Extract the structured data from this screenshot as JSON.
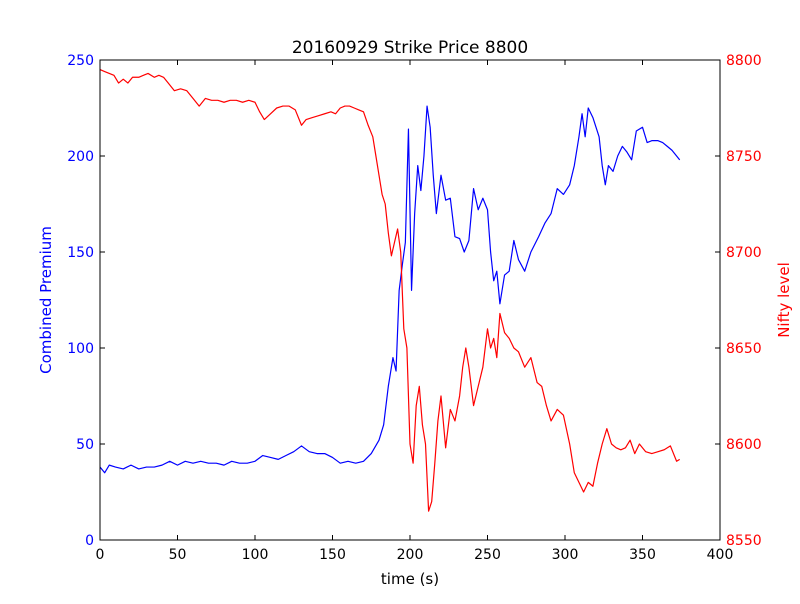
{
  "chart_data": {
    "type": "line",
    "title": "20160929 Strike Price 8800",
    "xlabel": "time (s)",
    "xlim": [
      0,
      400
    ],
    "x_ticks": [
      0,
      50,
      100,
      150,
      200,
      250,
      300,
      350,
      400
    ],
    "axes": {
      "left": {
        "label": "Combined Premium",
        "color": "#0000ff",
        "ylim": [
          0,
          250
        ],
        "ticks": [
          0,
          50,
          100,
          150,
          200,
          250
        ]
      },
      "right": {
        "label": "Nifty level",
        "color": "#ff0000",
        "ylim": [
          8550,
          8800
        ],
        "ticks": [
          8550,
          8600,
          8650,
          8700,
          8750,
          8800
        ]
      }
    },
    "grid": false,
    "legend": "none",
    "series": [
      {
        "axis": "left",
        "color": "#0000ff",
        "points": [
          [
            0,
            38
          ],
          [
            3,
            35
          ],
          [
            6,
            39
          ],
          [
            10,
            38
          ],
          [
            15,
            37
          ],
          [
            20,
            39
          ],
          [
            25,
            37
          ],
          [
            30,
            38
          ],
          [
            35,
            38
          ],
          [
            40,
            39
          ],
          [
            45,
            41
          ],
          [
            50,
            39
          ],
          [
            55,
            41
          ],
          [
            60,
            40
          ],
          [
            65,
            41
          ],
          [
            70,
            40
          ],
          [
            75,
            40
          ],
          [
            80,
            39
          ],
          [
            85,
            41
          ],
          [
            90,
            40
          ],
          [
            95,
            40
          ],
          [
            100,
            41
          ],
          [
            105,
            44
          ],
          [
            110,
            43
          ],
          [
            115,
            42
          ],
          [
            120,
            44
          ],
          [
            125,
            46
          ],
          [
            130,
            49
          ],
          [
            135,
            46
          ],
          [
            140,
            45
          ],
          [
            145,
            45
          ],
          [
            150,
            43
          ],
          [
            155,
            40
          ],
          [
            160,
            41
          ],
          [
            165,
            40
          ],
          [
            170,
            41
          ],
          [
            175,
            45
          ],
          [
            180,
            52
          ],
          [
            183,
            60
          ],
          [
            186,
            80
          ],
          [
            189,
            95
          ],
          [
            191,
            88
          ],
          [
            193,
            130
          ],
          [
            195,
            143
          ],
          [
            197,
            155
          ],
          [
            199,
            214
          ],
          [
            201,
            130
          ],
          [
            203,
            170
          ],
          [
            205,
            195
          ],
          [
            207,
            182
          ],
          [
            209,
            200
          ],
          [
            211,
            226
          ],
          [
            213,
            215
          ],
          [
            215,
            190
          ],
          [
            217,
            170
          ],
          [
            220,
            190
          ],
          [
            223,
            177
          ],
          [
            226,
            178
          ],
          [
            229,
            158
          ],
          [
            232,
            157
          ],
          [
            235,
            150
          ],
          [
            238,
            156
          ],
          [
            241,
            183
          ],
          [
            244,
            172
          ],
          [
            247,
            178
          ],
          [
            250,
            172
          ],
          [
            252,
            150
          ],
          [
            254,
            135
          ],
          [
            256,
            140
          ],
          [
            258,
            123
          ],
          [
            261,
            138
          ],
          [
            264,
            140
          ],
          [
            267,
            156
          ],
          [
            270,
            146
          ],
          [
            274,
            140
          ],
          [
            278,
            150
          ],
          [
            283,
            158
          ],
          [
            287,
            165
          ],
          [
            291,
            170
          ],
          [
            295,
            183
          ],
          [
            299,
            180
          ],
          [
            303,
            185
          ],
          [
            306,
            195
          ],
          [
            309,
            210
          ],
          [
            311,
            222
          ],
          [
            313,
            210
          ],
          [
            315,
            225
          ],
          [
            318,
            220
          ],
          [
            320,
            215
          ],
          [
            322,
            210
          ],
          [
            324,
            195
          ],
          [
            326,
            185
          ],
          [
            328,
            195
          ],
          [
            331,
            192
          ],
          [
            334,
            200
          ],
          [
            337,
            205
          ],
          [
            340,
            202
          ],
          [
            343,
            198
          ],
          [
            346,
            213
          ],
          [
            350,
            215
          ],
          [
            353,
            207
          ],
          [
            356,
            208
          ],
          [
            360,
            208
          ],
          [
            363,
            207
          ],
          [
            366,
            205
          ],
          [
            369,
            203
          ],
          [
            372,
            200
          ],
          [
            374,
            198
          ]
        ]
      },
      {
        "axis": "right",
        "color": "#ff0000",
        "points": [
          [
            0,
            8795
          ],
          [
            3,
            8794
          ],
          [
            6,
            8793
          ],
          [
            9,
            8792
          ],
          [
            12,
            8788
          ],
          [
            15,
            8790
          ],
          [
            18,
            8788
          ],
          [
            21,
            8791
          ],
          [
            25,
            8791
          ],
          [
            28,
            8792
          ],
          [
            31,
            8793
          ],
          [
            35,
            8791
          ],
          [
            38,
            8792
          ],
          [
            41,
            8791
          ],
          [
            44,
            8788
          ],
          [
            48,
            8784
          ],
          [
            52,
            8785
          ],
          [
            56,
            8784
          ],
          [
            60,
            8780
          ],
          [
            64,
            8776
          ],
          [
            68,
            8780
          ],
          [
            72,
            8779
          ],
          [
            76,
            8779
          ],
          [
            80,
            8778
          ],
          [
            84,
            8779
          ],
          [
            88,
            8779
          ],
          [
            92,
            8778
          ],
          [
            96,
            8779
          ],
          [
            100,
            8778
          ],
          [
            103,
            8773
          ],
          [
            106,
            8769
          ],
          [
            110,
            8772
          ],
          [
            114,
            8775
          ],
          [
            118,
            8776
          ],
          [
            122,
            8776
          ],
          [
            126,
            8774
          ],
          [
            130,
            8766
          ],
          [
            133,
            8769
          ],
          [
            137,
            8770
          ],
          [
            141,
            8771
          ],
          [
            145,
            8772
          ],
          [
            149,
            8773
          ],
          [
            152,
            8772
          ],
          [
            155,
            8775
          ],
          [
            158,
            8776
          ],
          [
            161,
            8776
          ],
          [
            164,
            8775
          ],
          [
            167,
            8774
          ],
          [
            170,
            8773
          ],
          [
            173,
            8766
          ],
          [
            176,
            8760
          ],
          [
            178,
            8750
          ],
          [
            180,
            8740
          ],
          [
            182,
            8730
          ],
          [
            184,
            8725
          ],
          [
            186,
            8710
          ],
          [
            188,
            8698
          ],
          [
            190,
            8705
          ],
          [
            192,
            8712
          ],
          [
            194,
            8700
          ],
          [
            196,
            8660
          ],
          [
            198,
            8650
          ],
          [
            200,
            8600
          ],
          [
            202,
            8590
          ],
          [
            204,
            8620
          ],
          [
            206,
            8630
          ],
          [
            208,
            8610
          ],
          [
            210,
            8600
          ],
          [
            212,
            8565
          ],
          [
            214,
            8570
          ],
          [
            216,
            8590
          ],
          [
            218,
            8612
          ],
          [
            220,
            8625
          ],
          [
            223,
            8598
          ],
          [
            226,
            8618
          ],
          [
            229,
            8612
          ],
          [
            232,
            8625
          ],
          [
            234,
            8640
          ],
          [
            236,
            8650
          ],
          [
            238,
            8640
          ],
          [
            241,
            8620
          ],
          [
            244,
            8630
          ],
          [
            247,
            8640
          ],
          [
            250,
            8660
          ],
          [
            252,
            8650
          ],
          [
            254,
            8655
          ],
          [
            256,
            8645
          ],
          [
            258,
            8668
          ],
          [
            261,
            8658
          ],
          [
            264,
            8655
          ],
          [
            267,
            8650
          ],
          [
            270,
            8648
          ],
          [
            274,
            8640
          ],
          [
            278,
            8645
          ],
          [
            282,
            8632
          ],
          [
            285,
            8630
          ],
          [
            288,
            8620
          ],
          [
            291,
            8612
          ],
          [
            295,
            8618
          ],
          [
            299,
            8615
          ],
          [
            303,
            8600
          ],
          [
            306,
            8585
          ],
          [
            309,
            8580
          ],
          [
            312,
            8575
          ],
          [
            315,
            8580
          ],
          [
            318,
            8578
          ],
          [
            321,
            8590
          ],
          [
            324,
            8600
          ],
          [
            327,
            8608
          ],
          [
            330,
            8600
          ],
          [
            333,
            8598
          ],
          [
            336,
            8597
          ],
          [
            339,
            8598
          ],
          [
            342,
            8602
          ],
          [
            345,
            8595
          ],
          [
            348,
            8600
          ],
          [
            352,
            8596
          ],
          [
            356,
            8595
          ],
          [
            360,
            8596
          ],
          [
            364,
            8597
          ],
          [
            368,
            8599
          ],
          [
            372,
            8591
          ],
          [
            374,
            8592
          ]
        ]
      }
    ]
  }
}
